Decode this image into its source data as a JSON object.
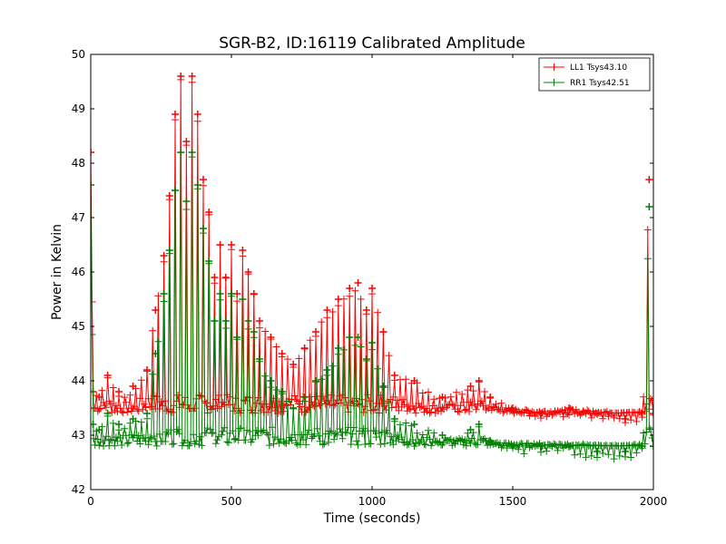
{
  "chart_data": {
    "type": "line",
    "title": "SGR-B2, ID:16119 Calibrated Amplitude",
    "xlabel": "Time (seconds)",
    "ylabel": "Power in Kelvin",
    "xlim": [
      0,
      2000
    ],
    "ylim": [
      42,
      50
    ],
    "xticks": [
      "0",
      "500",
      "1000",
      "1500",
      "2000"
    ],
    "yticks": [
      "42",
      "43",
      "44",
      "45",
      "46",
      "47",
      "48",
      "49",
      "50"
    ],
    "grid": false,
    "legend_position": "top-right",
    "marker": "+",
    "series": [
      {
        "name": "LL1 Tsys43.10",
        "color": "#ff0000",
        "x": [
          0,
          8,
          30,
          60,
          100,
          150,
          200,
          230,
          260,
          280,
          300,
          320,
          340,
          360,
          380,
          400,
          420,
          440,
          460,
          480,
          500,
          520,
          540,
          560,
          580,
          600,
          640,
          680,
          720,
          760,
          800,
          840,
          880,
          920,
          950,
          980,
          1000,
          1040,
          1080,
          1150,
          1250,
          1350,
          1380,
          1420,
          1500,
          1600,
          1700,
          1800,
          1900,
          1960,
          1985,
          2000
        ],
        "y": [
          48.2,
          43.8,
          43.7,
          44.1,
          43.8,
          43.9,
          44.2,
          45.3,
          46.3,
          47.4,
          48.9,
          49.6,
          48.4,
          49.6,
          48.9,
          47.7,
          47.1,
          45.9,
          46.5,
          45.9,
          46.5,
          45.6,
          46.4,
          46.0,
          45.6,
          45.1,
          44.8,
          44.5,
          44.3,
          44.6,
          44.9,
          45.3,
          45.5,
          45.7,
          45.8,
          45.3,
          45.7,
          44.9,
          44.1,
          44.0,
          43.7,
          43.9,
          44.0,
          43.7,
          43.5,
          43.4,
          43.5,
          43.4,
          43.3,
          43.4,
          47.7,
          43.4
        ]
      },
      {
        "name": "RR1 Tsys42.51",
        "color": "#008000",
        "x": [
          0,
          8,
          30,
          60,
          100,
          150,
          200,
          230,
          260,
          280,
          300,
          320,
          340,
          360,
          380,
          400,
          420,
          440,
          460,
          480,
          500,
          520,
          540,
          560,
          580,
          600,
          640,
          680,
          720,
          760,
          800,
          840,
          880,
          920,
          950,
          980,
          1000,
          1040,
          1080,
          1150,
          1250,
          1350,
          1380,
          1420,
          1500,
          1600,
          1700,
          1800,
          1900,
          1960,
          1985,
          2000
        ],
        "y": [
          47.6,
          43.2,
          43.1,
          43.4,
          43.2,
          43.3,
          43.4,
          44.5,
          45.6,
          46.4,
          47.5,
          48.2,
          47.3,
          48.2,
          47.6,
          46.8,
          46.2,
          45.1,
          45.6,
          45.1,
          45.6,
          44.8,
          45.5,
          45.1,
          44.9,
          44.4,
          44.0,
          43.8,
          43.5,
          43.7,
          44.0,
          44.2,
          44.6,
          44.8,
          44.8,
          44.4,
          44.7,
          43.9,
          43.3,
          43.2,
          43.0,
          43.1,
          43.2,
          42.9,
          42.8,
          42.8,
          42.8,
          42.7,
          42.7,
          42.8,
          47.2,
          42.8
        ]
      }
    ]
  }
}
